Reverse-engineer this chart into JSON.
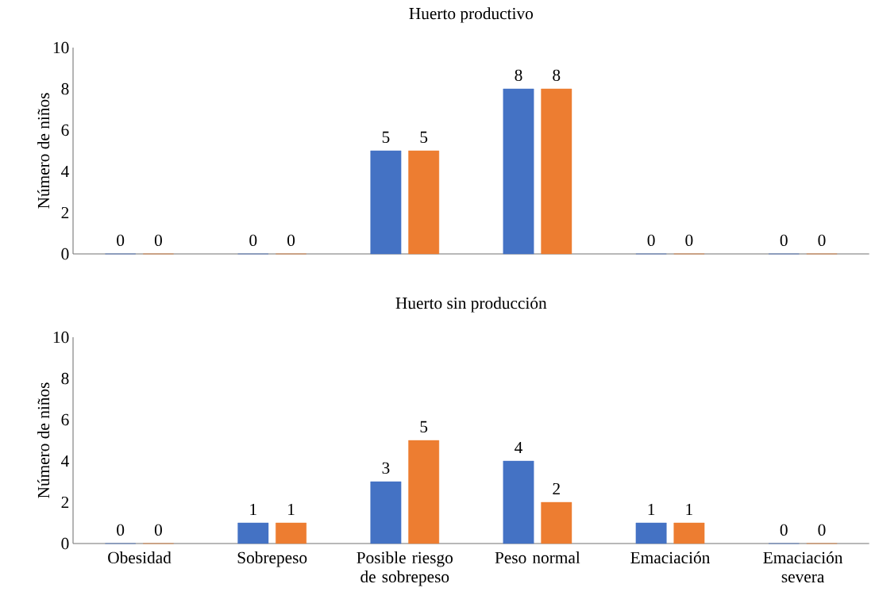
{
  "chart_data": [
    {
      "type": "bar",
      "title": "Huerto productivo",
      "ylabel": "Número de niños",
      "categories": [
        null,
        null,
        null,
        null,
        null,
        null
      ],
      "series": [
        {
          "color": "#4472c4",
          "values": [
            0,
            0,
            5,
            8,
            0,
            0
          ]
        },
        {
          "color": "#ed7d31",
          "values": [
            0,
            0,
            5,
            8,
            0,
            0
          ]
        }
      ],
      "ylim": [
        0,
        10
      ],
      "yticks": [
        0,
        2,
        4,
        6,
        8,
        10
      ],
      "data_labels": true,
      "tick_labels": "y"
    },
    {
      "type": "bar",
      "title": "Huerto sin producción",
      "ylabel": "Número de niños",
      "categories": [
        "Obesidad",
        "Sobrepeso",
        "Posible riesgo de sobrepeso",
        "Peso normal",
        "Emaciación",
        "Emaciación severa"
      ],
      "series": [
        {
          "color": "#4472c4",
          "values": [
            0,
            1,
            3,
            4,
            1,
            0
          ]
        },
        {
          "color": "#ed7d31",
          "values": [
            0,
            1,
            5,
            2,
            1,
            0
          ]
        }
      ],
      "ylim": [
        0,
        10
      ],
      "yticks": [
        0,
        2,
        4,
        6,
        8,
        10
      ],
      "data_labels": true
    }
  ]
}
